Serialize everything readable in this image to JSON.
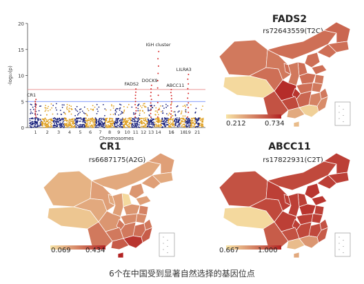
{
  "caption": "6个在中国受到显著自然选择的基因位点",
  "colors": {
    "odd_chrom": "#1a237e",
    "even_chrom": "#e0a020",
    "hit": "#d62828",
    "red_threshold": "#e57373",
    "blue_threshold": "#5c7cfa",
    "map_low": "#f7e3a5",
    "map_high": "#b22222"
  },
  "chart_data": [
    {
      "type": "scatter",
      "xlabel": "Chromosomes",
      "ylabel": "-log₁₀(p)",
      "ylim": [
        0,
        20
      ],
      "yticks": [
        "0",
        "5",
        "10",
        "15",
        "20"
      ],
      "xticks": [
        "1",
        "2",
        "3",
        "4",
        "5",
        "6",
        "7",
        "8",
        "9",
        "10",
        "11",
        "12",
        "13",
        "14",
        "15",
        "16",
        "17",
        "18",
        "19",
        "20",
        "21",
        "22"
      ],
      "xtick_labels": [
        "1",
        "3",
        "5",
        "7",
        "9",
        "11",
        "13",
        "16",
        "19"
      ],
      "xtick_labels_b": [
        "2",
        "4",
        "6",
        "8",
        "10",
        "12",
        "14",
        "16",
        "18",
        "21"
      ],
      "thresholds": [
        7.3,
        5
      ],
      "annotations": [
        {
          "label": "CR1",
          "chrom": 1,
          "y": 5.4
        },
        {
          "label": "FADS2",
          "chrom": 11,
          "y": 7.4
        },
        {
          "label": "DOCK9",
          "chrom": 13,
          "y": 8.1
        },
        {
          "label": "IGH cluster",
          "chrom": 14,
          "y": 14.6
        },
        {
          "label": "ABCC11",
          "chrom": 16,
          "y": 7.3
        },
        {
          "label": "LILRA3",
          "chrom": 19,
          "y": 10.2
        }
      ]
    },
    {
      "type": "heatmap",
      "title": "FADS2",
      "subtitle": "rs72643559(T2C)",
      "legend_min": "0.212",
      "legend_max": "0.734",
      "scale_low": 0.212,
      "scale_high": 0.734
    },
    {
      "type": "heatmap",
      "title": "CR1",
      "subtitle": "rs6687175(A2G)",
      "legend_min": "0.069",
      "legend_max": "0.434",
      "scale_low": 0.069,
      "scale_high": 0.434
    },
    {
      "type": "heatmap",
      "title": "ABCC11",
      "subtitle": "rs17822931(C2T)",
      "legend_min": "0.667",
      "legend_max": "1.000",
      "scale_low": 0.667,
      "scale_high": 1.0
    }
  ]
}
